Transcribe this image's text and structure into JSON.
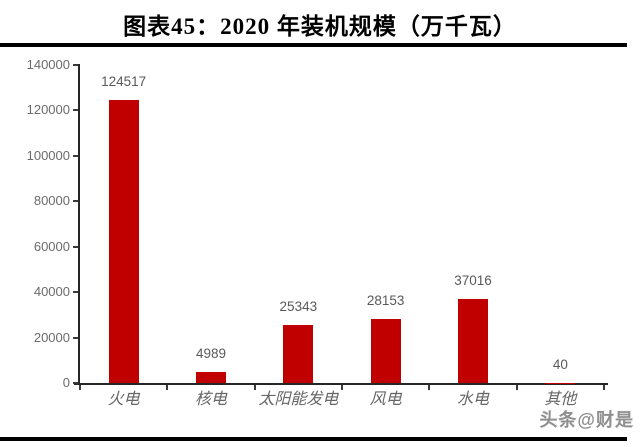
{
  "page": {
    "title": "图表45：2020 年装机规模（万千瓦）",
    "watermark": "头条@财是"
  },
  "chart_data": {
    "type": "bar",
    "title": "图表45：2020 年装机规模（万千瓦）",
    "unit": "万千瓦",
    "categories": [
      "火电",
      "核电",
      "太阳能发电",
      "风电",
      "水电",
      "其他"
    ],
    "values": [
      124517,
      4989,
      25343,
      28153,
      37016,
      40
    ],
    "data_labels": true,
    "ylim": [
      0,
      140000
    ],
    "yticks": [
      0,
      20000,
      40000,
      60000,
      80000,
      100000,
      120000,
      140000
    ],
    "grid": false,
    "legend": null,
    "xlabel": "",
    "ylabel": "",
    "bar_color": "#C00000",
    "label_color": "#595959",
    "axis_color": "#262626",
    "title_color": "#000000"
  }
}
